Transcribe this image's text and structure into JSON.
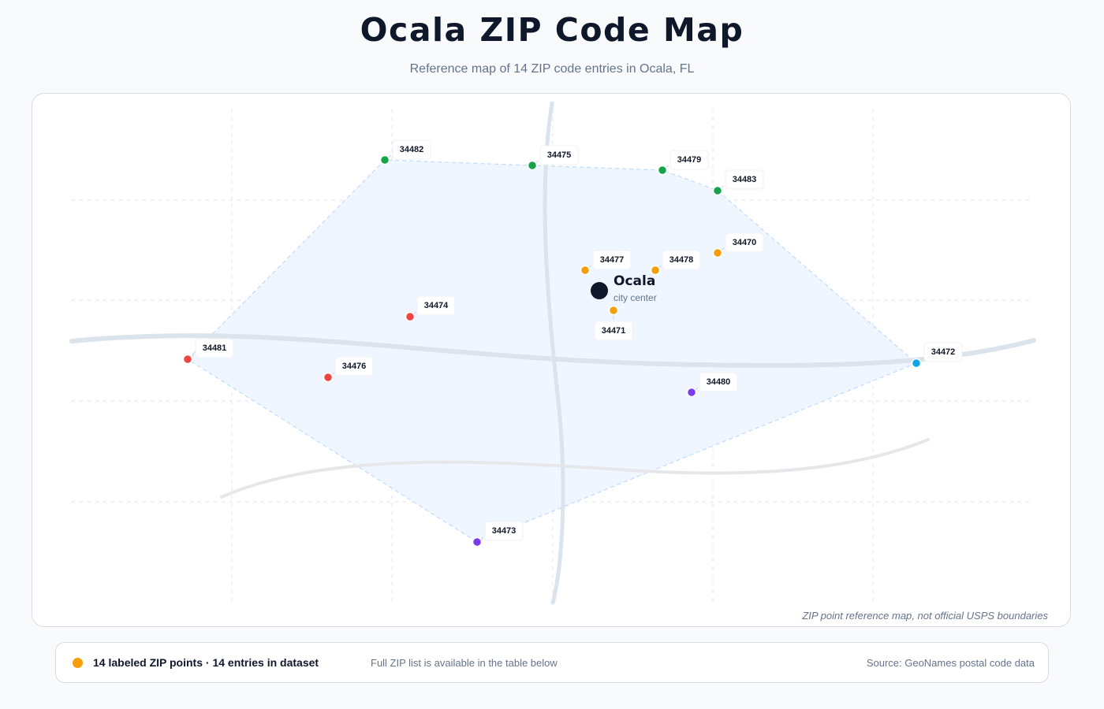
{
  "header": {
    "title": "Ocala ZIP Code Map",
    "subtitle": "Reference map of 14 ZIP code entries in Ocala, FL"
  },
  "map": {
    "note": "ZIP point reference map, not official USPS boundaries",
    "city": {
      "name": "Ocala",
      "label": "city center"
    },
    "group_colors": {
      "north": "#16a34a",
      "central": "#f59e0b",
      "west": "#ef4444",
      "south": "#7c3aed",
      "east": "#0ea5e9"
    },
    "zip_points": [
      {
        "zip": "34482",
        "group": "north"
      },
      {
        "zip": "34475",
        "group": "north"
      },
      {
        "zip": "34479",
        "group": "north"
      },
      {
        "zip": "34483",
        "group": "north"
      },
      {
        "zip": "34470",
        "group": "central"
      },
      {
        "zip": "34477",
        "group": "central"
      },
      {
        "zip": "34478",
        "group": "central"
      },
      {
        "zip": "34471",
        "group": "central"
      },
      {
        "zip": "34474",
        "group": "west"
      },
      {
        "zip": "34481",
        "group": "west"
      },
      {
        "zip": "34476",
        "group": "west"
      },
      {
        "zip": "34472",
        "group": "east"
      },
      {
        "zip": "34480",
        "group": "south"
      },
      {
        "zip": "34473",
        "group": "south"
      }
    ]
  },
  "legend": {
    "color": "#f59e0b",
    "summary": "14 labeled ZIP points · 14 entries in dataset",
    "note": "Full ZIP list is available in the table below",
    "source": "Source: GeoNames postal code data"
  }
}
